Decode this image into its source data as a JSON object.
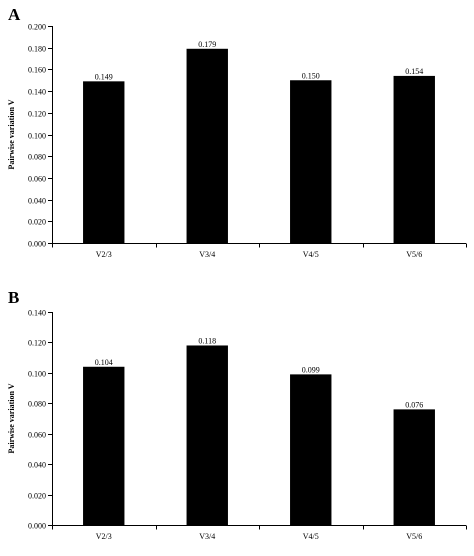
{
  "chart_data": [
    {
      "type": "bar",
      "panel": "A",
      "title": "",
      "xlabel": "",
      "ylabel": "Pairwise variation V",
      "categories": [
        "V2/3",
        "V3/4",
        "V4/5",
        "V5/6"
      ],
      "values": [
        0.149,
        0.179,
        0.15,
        0.154
      ],
      "data_labels": [
        "0.149",
        "0.179",
        "0.150",
        "0.154"
      ],
      "ylim": [
        0,
        0.2
      ],
      "yticks": [
        "0.000",
        "0.020",
        "0.040",
        "0.060",
        "0.080",
        "0.100",
        "0.120",
        "0.140",
        "0.160",
        "0.180",
        "0.200"
      ],
      "bar_color": "#000000",
      "grid": false,
      "legend": "none"
    },
    {
      "type": "bar",
      "panel": "B",
      "title": "",
      "xlabel": "",
      "ylabel": "Pairwise variation V",
      "categories": [
        "V2/3",
        "V3/4",
        "V4/5",
        "V5/6"
      ],
      "values": [
        0.104,
        0.118,
        0.099,
        0.076
      ],
      "data_labels": [
        "0.104",
        "0.118",
        "0.099",
        "0.076"
      ],
      "ylim": [
        0,
        0.14
      ],
      "yticks": [
        "0.000",
        "0.020",
        "0.040",
        "0.060",
        "0.080",
        "0.100",
        "0.120",
        "0.140"
      ],
      "bar_color": "#000000",
      "grid": false,
      "legend": "none"
    }
  ]
}
